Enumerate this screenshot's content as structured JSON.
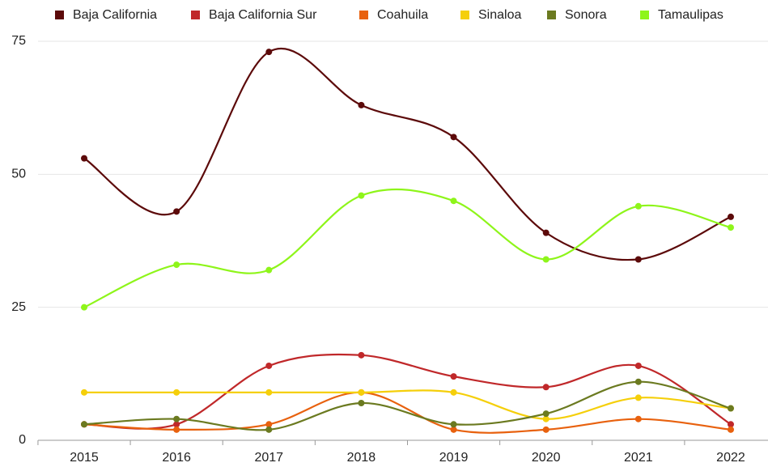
{
  "chart_data": {
    "type": "line",
    "categories": [
      "2015",
      "2016",
      "2017",
      "2018",
      "2019",
      "2020",
      "2021",
      "2022"
    ],
    "series": [
      {
        "name": "Baja California",
        "color": "#5c0a0a",
        "values": [
          53,
          43,
          73,
          63,
          57,
          39,
          34,
          42
        ]
      },
      {
        "name": "Baja California Sur",
        "color": "#c0282a",
        "values": [
          3,
          3,
          14,
          16,
          12,
          10,
          14,
          3
        ]
      },
      {
        "name": "Coahuila",
        "color": "#e8610e",
        "values": [
          3,
          2,
          3,
          9,
          2,
          2,
          4,
          2
        ]
      },
      {
        "name": "Sinaloa",
        "color": "#f5cf0a",
        "values": [
          9,
          9,
          9,
          9,
          9,
          4,
          8,
          6
        ]
      },
      {
        "name": "Sonora",
        "color": "#6b7a20",
        "values": [
          3,
          4,
          2,
          7,
          3,
          5,
          11,
          6
        ]
      },
      {
        "name": "Tamaulipas",
        "color": "#8ef51a",
        "values": [
          25,
          33,
          32,
          46,
          45,
          34,
          44,
          40
        ]
      }
    ],
    "ylim": [
      0,
      75
    ],
    "yticks": [
      0,
      25,
      50,
      75
    ],
    "grid": true,
    "legend": "top"
  }
}
